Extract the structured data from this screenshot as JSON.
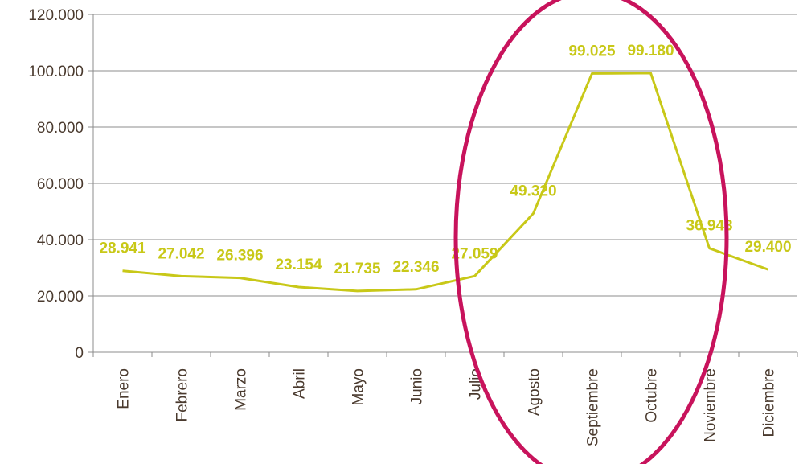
{
  "chart_data": {
    "type": "line",
    "categories": [
      "Enero",
      "Febrero",
      "Marzo",
      "Abril",
      "Mayo",
      "Junio",
      "Julio",
      "Agosto",
      "Septiembre",
      "Octubre",
      "Noviembre",
      "Diciembre"
    ],
    "series": [
      {
        "values": [
          28941,
          27042,
          26396,
          23154,
          21735,
          22346,
          27059,
          49320,
          99025,
          99180,
          36943,
          29400
        ],
        "data_labels": [
          "28.941",
          "27.042",
          "26.396",
          "23.154",
          "21.735",
          "22.346",
          "27.059",
          "49.320",
          "99.025",
          "99.180",
          "36.943",
          "29.400"
        ],
        "color": "#c8c818"
      }
    ],
    "yticks": [
      0,
      20000,
      40000,
      60000,
      80000,
      100000,
      120000
    ],
    "ytick_labels": [
      "0",
      "20.000",
      "40.000",
      "60.000",
      "80.000",
      "100.000",
      "120.000"
    ],
    "ylim": [
      0,
      120000
    ],
    "title": "",
    "xlabel": "",
    "ylabel": "",
    "grid": true,
    "legend": "none",
    "annotation": {
      "shape": "ellipse",
      "color": "#c8135c",
      "encloses": [
        "Julio",
        "Agosto",
        "Septiembre",
        "Octubre",
        "Noviembre"
      ]
    }
  },
  "colors": {
    "line": "#c8c818",
    "grid": "#8c8c8c",
    "axis": "#8c8c8c",
    "text": "#4a3a2e",
    "highlight": "#c8135c"
  }
}
